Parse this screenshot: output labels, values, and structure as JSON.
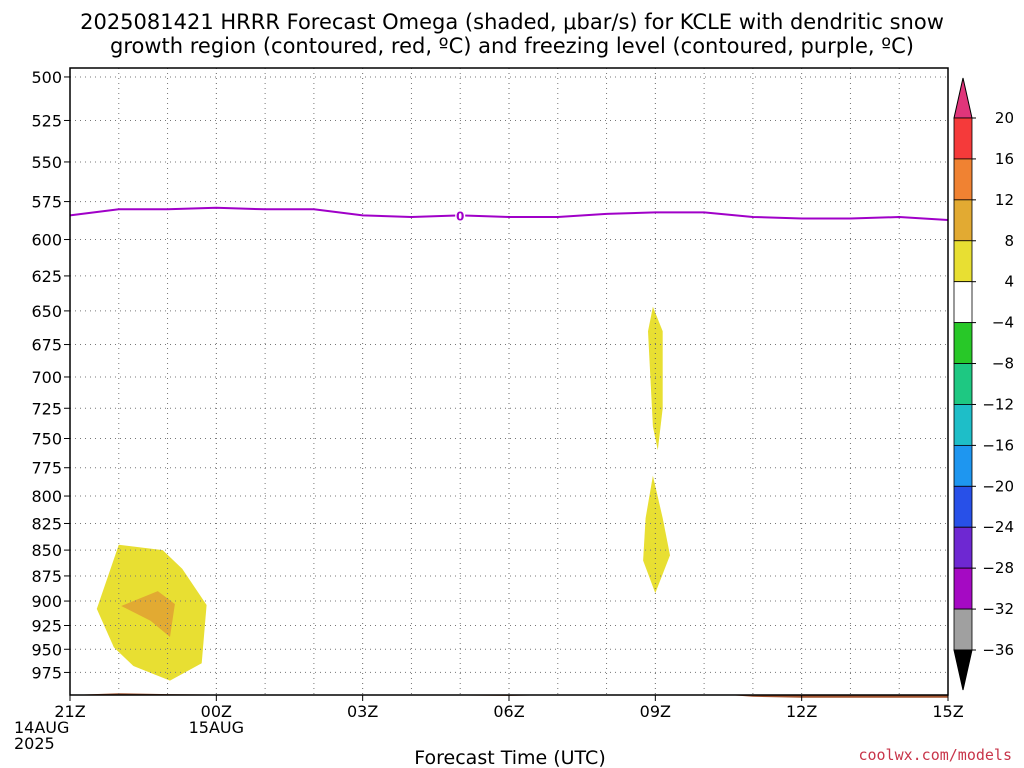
{
  "title": {
    "line1": "2025081421 HRRR Forecast Omega (shaded, μbar/s) for KCLE with dendritic snow",
    "line2": "growth region (contoured, red, ºC) and freezing level (contoured, purple, ºC)"
  },
  "credit": "coolwx.com/models",
  "chart_data": {
    "type": "heatmap",
    "title": "2025081421 HRRR Forecast Omega (shaded, μbar/s) for KCLE with dendritic snow growth region (contoured, red, ºC) and freezing level (contoured, purple, ºC)",
    "xlabel": "Forecast Time (UTC)",
    "ylabel": "",
    "x_unit": "forecast hour from 21Z 14AUG 2025",
    "xlim": [
      0,
      18
    ],
    "ylim": [
      1000,
      495
    ],
    "y_scale": "log-pressure (hPa)",
    "grid": true,
    "x_ticks": [
      {
        "x": 0,
        "lines": [
          "21Z",
          "14AUG",
          "2025"
        ]
      },
      {
        "x": 3,
        "lines": [
          "00Z",
          "15AUG"
        ]
      },
      {
        "x": 6,
        "lines": [
          "03Z"
        ]
      },
      {
        "x": 9,
        "lines": [
          "06Z"
        ]
      },
      {
        "x": 12,
        "lines": [
          "09Z"
        ]
      },
      {
        "x": 15,
        "lines": [
          "12Z"
        ]
      },
      {
        "x": 18,
        "lines": [
          "15Z"
        ]
      }
    ],
    "y_ticks": [
      500,
      525,
      550,
      575,
      600,
      625,
      650,
      675,
      700,
      725,
      750,
      775,
      800,
      825,
      850,
      875,
      900,
      925,
      950,
      975
    ],
    "x_minor_grid": [
      1,
      2,
      4,
      5,
      7,
      8,
      10,
      11,
      13,
      14,
      16,
      17
    ],
    "colorbar": {
      "labels": [
        "20",
        "16",
        "12",
        "8",
        "4",
        "-4",
        "-8",
        "-12",
        "-16",
        "-20",
        "-24",
        "-28",
        "-32",
        "-36"
      ],
      "colors": [
        "#e0357a",
        "#f53a3a",
        "#f08232",
        "#e2aa32",
        "#e8df32",
        "#ffffff",
        "#28c828",
        "#1ec882",
        "#1ebec8",
        "#1e96f0",
        "#2850e8",
        "#6e28d2",
        "#a50ac3",
        "#a0a0a0",
        "#000000"
      ]
    },
    "freezing_level": {
      "label": "0",
      "color": "#a000c8",
      "label_x": 8.0,
      "points": [
        [
          0,
          584
        ],
        [
          1,
          580
        ],
        [
          2,
          580
        ],
        [
          3,
          579
        ],
        [
          4,
          580
        ],
        [
          5,
          580
        ],
        [
          6,
          584
        ],
        [
          7,
          585
        ],
        [
          8,
          584
        ],
        [
          9,
          585
        ],
        [
          10,
          585
        ],
        [
          11,
          583
        ],
        [
          12,
          582
        ],
        [
          13,
          582
        ],
        [
          14,
          585
        ],
        [
          15,
          586
        ],
        [
          16,
          586
        ],
        [
          17,
          585
        ],
        [
          18,
          587
        ]
      ]
    },
    "shaded_regions": [
      {
        "name": "omega-4-8-low-left",
        "value_range": "4 to 8",
        "color": "#e8df32",
        "points": [
          [
            0.55,
            908
          ],
          [
            1.0,
            845
          ],
          [
            1.9,
            850
          ],
          [
            2.3,
            868
          ],
          [
            2.8,
            904
          ],
          [
            2.7,
            965
          ],
          [
            2.05,
            984
          ],
          [
            1.3,
            968
          ],
          [
            0.9,
            948
          ]
        ]
      },
      {
        "name": "omega-8-12-low-left",
        "value_range": "8 to 12",
        "color": "#e2aa32",
        "points": [
          [
            1.05,
            905
          ],
          [
            1.8,
            890
          ],
          [
            2.15,
            903
          ],
          [
            2.05,
            937
          ],
          [
            1.65,
            920
          ]
        ]
      },
      {
        "name": "omega-4-8-mid",
        "value_range": "4 to 8",
        "color": "#e8df32",
        "points": [
          [
            11.95,
            647
          ],
          [
            12.15,
            665
          ],
          [
            12.15,
            725
          ],
          [
            12.05,
            760
          ],
          [
            11.95,
            740
          ],
          [
            11.85,
            665
          ]
        ]
      },
      {
        "name": "omega-4-8-lower-mid",
        "value_range": "4 to 8",
        "color": "#e8df32",
        "points": [
          [
            11.95,
            782
          ],
          [
            12.15,
            820
          ],
          [
            12.3,
            855
          ],
          [
            12.0,
            892
          ],
          [
            11.75,
            860
          ],
          [
            11.8,
            820
          ]
        ]
      }
    ],
    "terrain": {
      "color": "#a0522d",
      "points": [
        [
          0,
          1000
        ],
        [
          0.5,
          999
        ],
        [
          1.0,
          998
        ],
        [
          2.0,
          999
        ],
        [
          4.0,
          1000
        ],
        [
          7.0,
          1000
        ],
        [
          9.0,
          1001
        ],
        [
          10.0,
          1000
        ],
        [
          13.5,
          1000
        ],
        [
          14.0,
          1002
        ],
        [
          15.0,
          1003
        ],
        [
          18.0,
          1003
        ]
      ]
    }
  }
}
